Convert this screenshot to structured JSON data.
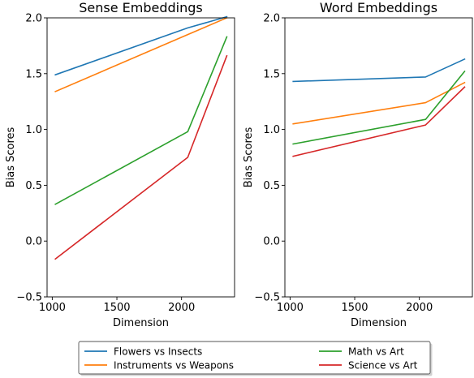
{
  "chart_data": [
    {
      "type": "line",
      "title": "Sense Embeddings",
      "xlabel": "Dimension",
      "ylabel": "Bias Scores",
      "xlim": [
        960,
        2410
      ],
      "ylim": [
        -0.5,
        2.0
      ],
      "x_ticks": [
        1000,
        1500,
        2000
      ],
      "x_tick_labels": [
        "1000",
        "1500",
        "2000"
      ],
      "y_ticks": [
        -0.5,
        0.0,
        0.5,
        1.0,
        1.5,
        2.0
      ],
      "y_tick_labels": [
        "−0.5",
        "0.0",
        "0.5",
        "1.0",
        "1.5",
        "2.0"
      ],
      "grid": false,
      "x": [
        1024,
        2048,
        2350
      ],
      "series": [
        {
          "name": "Flowers vs Insects",
          "color": "#1f77b4",
          "values": [
            1.49,
            1.91,
            2.01
          ]
        },
        {
          "name": "Instruments vs Weapons",
          "color": "#ff7f0e",
          "values": [
            1.34,
            1.85,
            2.0
          ]
        },
        {
          "name": "Math vs Art",
          "color": "#2ca02c",
          "values": [
            0.33,
            0.98,
            1.83
          ]
        },
        {
          "name": "Science vs Art",
          "color": "#d62728",
          "values": [
            -0.16,
            0.75,
            1.66
          ]
        }
      ]
    },
    {
      "type": "line",
      "title": "Word Embeddings",
      "xlabel": "Dimension",
      "ylabel": "Bias Scores",
      "xlim": [
        960,
        2410
      ],
      "ylim": [
        -0.5,
        2.0
      ],
      "x_ticks": [
        1000,
        1500,
        2000
      ],
      "x_tick_labels": [
        "1000",
        "1500",
        "2000"
      ],
      "y_ticks": [
        -0.5,
        0.0,
        0.5,
        1.0,
        1.5,
        2.0
      ],
      "y_tick_labels": [
        "−0.5",
        "0.0",
        "0.5",
        "1.0",
        "1.5",
        "2.0"
      ],
      "grid": false,
      "x": [
        1024,
        2048,
        2350
      ],
      "series": [
        {
          "name": "Flowers vs Insects",
          "color": "#1f77b4",
          "values": [
            1.43,
            1.47,
            1.63
          ]
        },
        {
          "name": "Instruments vs Weapons",
          "color": "#ff7f0e",
          "values": [
            1.05,
            1.24,
            1.42
          ]
        },
        {
          "name": "Math vs Art",
          "color": "#2ca02c",
          "values": [
            0.87,
            1.09,
            1.52
          ]
        },
        {
          "name": "Science vs Art",
          "color": "#d62728",
          "values": [
            0.76,
            1.04,
            1.38
          ]
        }
      ]
    }
  ],
  "legend": {
    "placement": "bottom-center",
    "entries": [
      {
        "label": "Flowers vs Insects",
        "color": "#1f77b4"
      },
      {
        "label": "Instruments vs Weapons",
        "color": "#ff7f0e"
      },
      {
        "label": "Math vs Art",
        "color": "#2ca02c"
      },
      {
        "label": "Science vs Art",
        "color": "#d62728"
      }
    ]
  }
}
